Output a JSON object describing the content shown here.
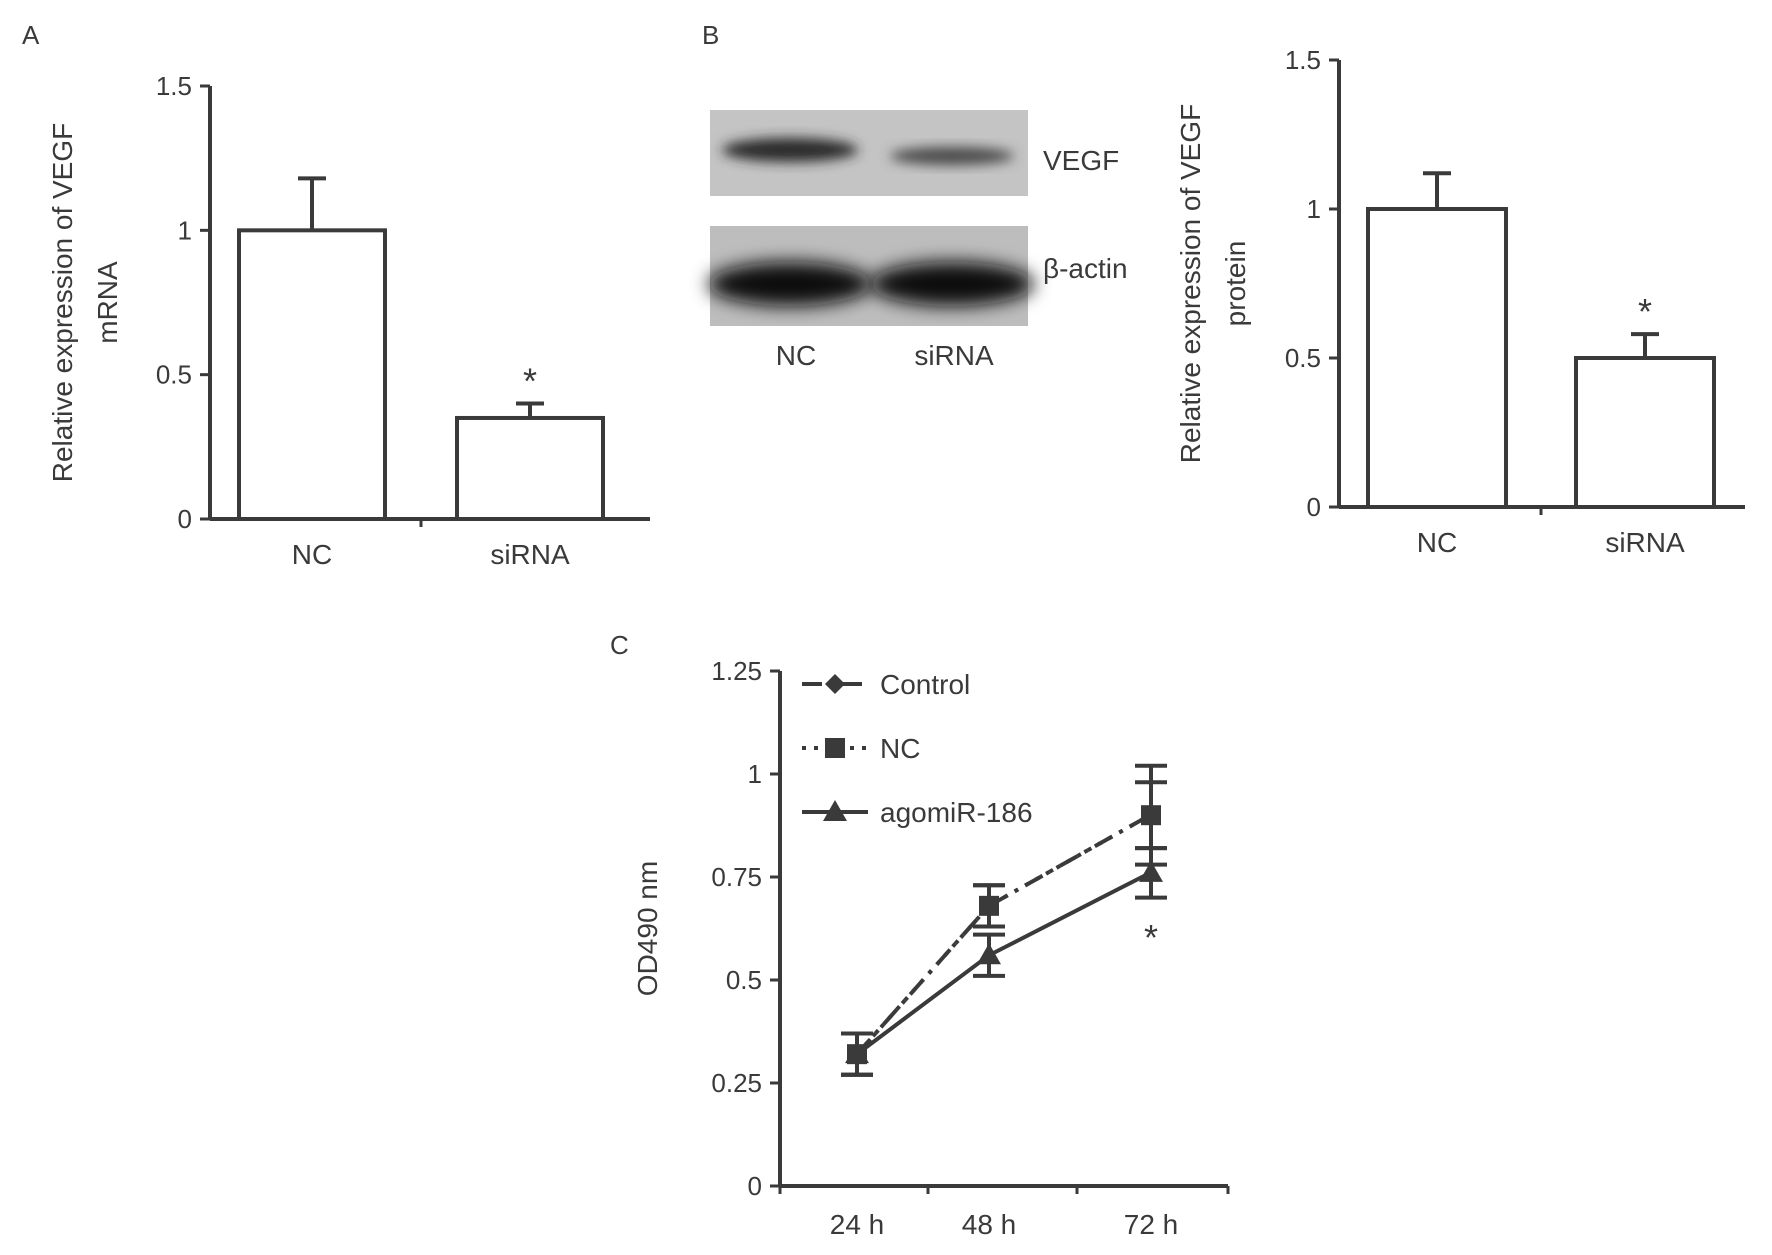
{
  "panels": [
    {
      "letter": "A"
    },
    {
      "letter": "B"
    },
    {
      "letter": "C"
    }
  ],
  "blot": {
    "bands": [
      "VEGF",
      "β-actin"
    ],
    "lanes": [
      "NC",
      "siRNA"
    ]
  },
  "chart_data": [
    {
      "type": "bar",
      "panel": "A",
      "categories": [
        "NC",
        "siRNA"
      ],
      "values": [
        1.0,
        0.35
      ],
      "errors": [
        0.18,
        0.05
      ],
      "annotations": [
        "",
        "*"
      ],
      "xlabel": "",
      "ylabel": "Relative expression of VEGF mRNA",
      "ylabel_lines": [
        "Relative expression of VEGF",
        "mRNA"
      ],
      "ylim": [
        0,
        1.5
      ],
      "yticks": [
        0,
        0.5,
        1,
        1.5
      ],
      "ytick_labels": [
        "0",
        "0.5",
        "1",
        "1.5"
      ],
      "grid": false
    },
    {
      "type": "bar",
      "panel": "B",
      "categories": [
        "NC",
        "siRNA"
      ],
      "values": [
        1.0,
        0.5
      ],
      "errors": [
        0.12,
        0.08
      ],
      "annotations": [
        "",
        "*"
      ],
      "xlabel": "",
      "ylabel": "Relative expression of VEGF protein",
      "ylabel_lines": [
        "Relative expression of VEGF",
        "protein"
      ],
      "ylim": [
        0,
        1.5
      ],
      "yticks": [
        0,
        0.5,
        1,
        1.5
      ],
      "ytick_labels": [
        "0",
        "0.5",
        "1",
        "1.5"
      ],
      "grid": false
    },
    {
      "type": "line",
      "panel": "C",
      "categories": [
        "24 h",
        "48 h",
        "72 h"
      ],
      "series": [
        {
          "name": "Control",
          "values": [
            0.32,
            0.68,
            0.9
          ],
          "errors": [
            0.05,
            0.05,
            0.08
          ],
          "marker": "diamond",
          "dash": "dashdot"
        },
        {
          "name": "NC",
          "values": [
            0.32,
            0.68,
            0.9
          ],
          "errors": [
            0.05,
            0.05,
            0.12
          ],
          "marker": "square",
          "dash": "dotted"
        },
        {
          "name": "agomiR-186",
          "values": [
            0.32,
            0.56,
            0.76
          ],
          "errors": [
            0.05,
            0.05,
            0.06
          ],
          "marker": "triangle",
          "dash": "solid"
        }
      ],
      "annotations": [
        {
          "category": "72 h",
          "text": "*"
        }
      ],
      "xlabel": "",
      "ylabel": "OD490 nm",
      "ylim": [
        0,
        1.25
      ],
      "yticks": [
        0,
        0.25,
        0.5,
        0.75,
        1,
        1.25
      ],
      "ytick_labels": [
        "0",
        "0.25",
        "0.5",
        "0.75",
        "1",
        "1.25"
      ],
      "legend_position": "top-left",
      "grid": false
    }
  ]
}
